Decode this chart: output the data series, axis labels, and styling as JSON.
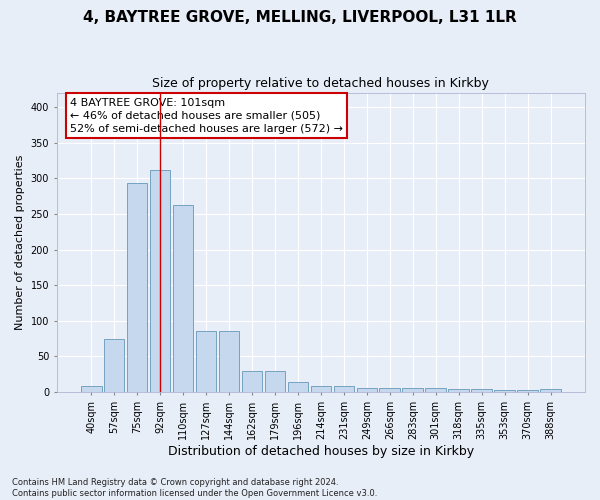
{
  "title": "4, BAYTREE GROVE, MELLING, LIVERPOOL, L31 1LR",
  "subtitle": "Size of property relative to detached houses in Kirkby",
  "xlabel": "Distribution of detached houses by size in Kirkby",
  "ylabel": "Number of detached properties",
  "footnote": "Contains HM Land Registry data © Crown copyright and database right 2024.\nContains public sector information licensed under the Open Government Licence v3.0.",
  "bin_labels": [
    "40sqm",
    "57sqm",
    "75sqm",
    "92sqm",
    "110sqm",
    "127sqm",
    "144sqm",
    "162sqm",
    "179sqm",
    "196sqm",
    "214sqm",
    "231sqm",
    "249sqm",
    "266sqm",
    "283sqm",
    "301sqm",
    "318sqm",
    "335sqm",
    "353sqm",
    "370sqm",
    "388sqm"
  ],
  "bar_heights": [
    8,
    75,
    293,
    312,
    262,
    85,
    85,
    30,
    30,
    14,
    9,
    9,
    5,
    5,
    6,
    6,
    4,
    4,
    3,
    3,
    4
  ],
  "bar_color": "#c5d8ee",
  "bar_edge_color": "#6699bb",
  "annotation_line1": "4 BAYTREE GROVE: 101sqm",
  "annotation_line2": "← 46% of detached houses are smaller (505)",
  "annotation_line3": "52% of semi-detached houses are larger (572) →",
  "annotation_box_color": "#ffffff",
  "annotation_box_edge_color": "#cc0000",
  "property_bin_index": 3,
  "red_line_color": "#cc0000",
  "ylim": [
    0,
    420
  ],
  "yticks": [
    0,
    50,
    100,
    150,
    200,
    250,
    300,
    350,
    400
  ],
  "background_color": "#e8eef8",
  "plot_bg_color": "#e8eef8",
  "grid_color": "#ffffff",
  "title_fontsize": 11,
  "subtitle_fontsize": 9,
  "ylabel_fontsize": 8,
  "xlabel_fontsize": 9,
  "tick_fontsize": 7,
  "annotation_fontsize": 8,
  "footnote_fontsize": 6
}
